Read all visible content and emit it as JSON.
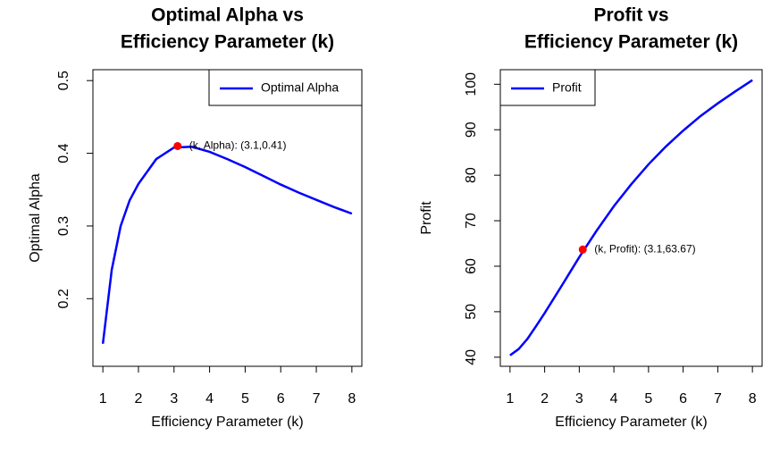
{
  "chart_data": [
    {
      "type": "line",
      "title": [
        "Optimal Alpha vs",
        "Efficiency Parameter (k)"
      ],
      "x_label": "Efficiency Parameter (k)",
      "y_label": "Optimal Alpha",
      "x": [
        1,
        1.25,
        1.5,
        1.75,
        2,
        2.5,
        3,
        3.5,
        4,
        4.5,
        5,
        5.5,
        6,
        6.5,
        7,
        7.5,
        8
      ],
      "series": [
        {
          "name": "Optimal Alpha",
          "color": "#0000ff",
          "values": [
            0.138,
            0.24,
            0.3,
            0.335,
            0.358,
            0.392,
            0.408,
            0.409,
            0.402,
            0.392,
            0.381,
            0.369,
            0.357,
            0.346,
            0.336,
            0.326,
            0.317
          ]
        }
      ],
      "points": [
        {
          "x": 3.1,
          "y": 0.41,
          "color": "#ff0000",
          "label": "(k, Alpha): (3.1,0.41)"
        }
      ],
      "xlim": [
        0.72,
        8.28
      ],
      "xticks": [
        1,
        2,
        3,
        4,
        5,
        6,
        7,
        8
      ],
      "ylim": [
        0.107,
        0.515
      ],
      "yticks": [
        0.2,
        0.3,
        0.4,
        0.5
      ],
      "legend": "topright"
    },
    {
      "type": "line",
      "title": [
        "Profit vs",
        "Efficiency Parameter (k)"
      ],
      "x_label": "Efficiency Parameter (k)",
      "y_label": "Profit",
      "x": [
        1,
        1.25,
        1.5,
        1.75,
        2,
        2.5,
        3,
        3.5,
        4,
        4.5,
        5,
        5.5,
        6,
        6.5,
        7,
        7.5,
        8
      ],
      "series": [
        {
          "name": "Profit",
          "color": "#0000ff",
          "values": [
            40.4,
            41.8,
            44,
            46.8,
            49.7,
            55.8,
            62,
            67.8,
            73.2,
            78,
            82.4,
            86.3,
            89.8,
            93,
            95.8,
            98.4,
            100.9
          ]
        }
      ],
      "points": [
        {
          "x": 3.1,
          "y": 63.67,
          "color": "#ff0000",
          "label": "(k, Profit): (3.1,63.67)"
        }
      ],
      "xlim": [
        0.72,
        8.28
      ],
      "xticks": [
        1,
        2,
        3,
        4,
        5,
        6,
        7,
        8
      ],
      "ylim": [
        38.0,
        103.2
      ],
      "yticks": [
        40,
        50,
        60,
        70,
        80,
        90,
        100
      ],
      "legend": "topleft"
    }
  ]
}
